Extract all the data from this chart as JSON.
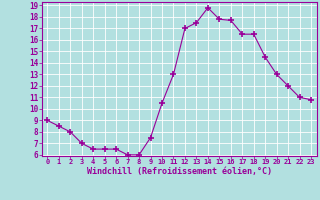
{
  "x": [
    0,
    1,
    2,
    3,
    4,
    5,
    6,
    7,
    8,
    9,
    10,
    11,
    12,
    13,
    14,
    15,
    16,
    17,
    18,
    19,
    20,
    21,
    22,
    23
  ],
  "y": [
    9.0,
    8.5,
    8.0,
    7.0,
    6.5,
    6.5,
    6.5,
    6.0,
    6.0,
    7.5,
    10.5,
    13.0,
    17.0,
    17.5,
    18.8,
    17.8,
    17.7,
    16.5,
    16.5,
    14.5,
    13.0,
    12.0,
    11.0,
    10.8
  ],
  "line_color": "#990099",
  "marker": "+",
  "marker_size": 4,
  "bg_color": "#b2e0e0",
  "grid_color": "#ffffff",
  "xlabel": "Windchill (Refroidissement éolien,°C)",
  "xlabel_color": "#990099",
  "tick_color": "#990099",
  "ylim": [
    6,
    19
  ],
  "xlim": [
    -0.5,
    23.5
  ],
  "yticks": [
    6,
    7,
    8,
    9,
    10,
    11,
    12,
    13,
    14,
    15,
    16,
    17,
    18,
    19
  ],
  "xticks": [
    0,
    1,
    2,
    3,
    4,
    5,
    6,
    7,
    8,
    9,
    10,
    11,
    12,
    13,
    14,
    15,
    16,
    17,
    18,
    19,
    20,
    21,
    22,
    23
  ],
  "spine_color": "#990099"
}
